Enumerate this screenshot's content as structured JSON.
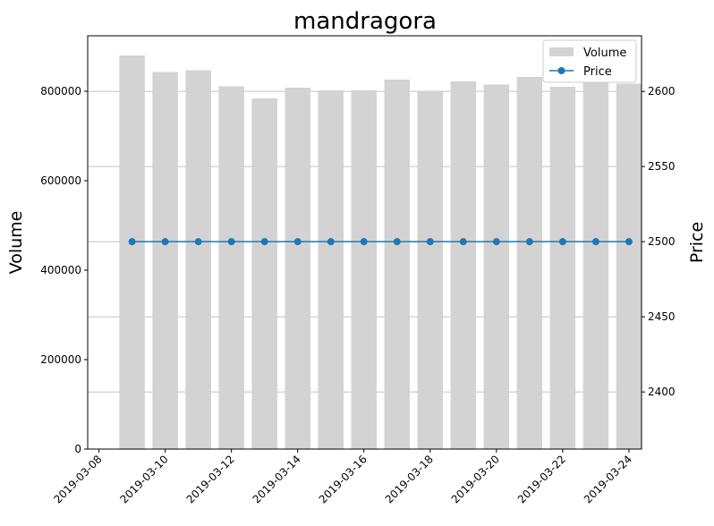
{
  "chart_data": {
    "type": "bar+line",
    "title": "mandragora",
    "x": [
      "2019-03-09",
      "2019-03-10",
      "2019-03-11",
      "2019-03-12",
      "2019-03-13",
      "2019-03-14",
      "2019-03-15",
      "2019-03-16",
      "2019-03-17",
      "2019-03-18",
      "2019-03-19",
      "2019-03-20",
      "2019-03-21",
      "2019-03-22",
      "2019-03-23",
      "2019-03-24"
    ],
    "x_ticks": [
      "2019-03-08",
      "2019-03-10",
      "2019-03-12",
      "2019-03-14",
      "2019-03-16",
      "2019-03-18",
      "2019-03-20",
      "2019-03-22",
      "2019-03-24"
    ],
    "x_range": [
      "2019-03-08",
      "2019-03-25"
    ],
    "series": [
      {
        "name": "Volume",
        "type": "bar",
        "axis": "left",
        "color": "#d3d3d3",
        "values": [
          880000,
          843000,
          847000,
          811000,
          784000,
          808000,
          802000,
          802000,
          826000,
          800000,
          822000,
          815000,
          832000,
          810000,
          820000,
          817000
        ]
      },
      {
        "name": "Price",
        "type": "line",
        "axis": "right",
        "color": "#1f77b4",
        "marker": "circle",
        "values": [
          2500,
          2500,
          2500,
          2500,
          2500,
          2500,
          2500,
          2500,
          2500,
          2500,
          2500,
          2500,
          2500,
          2500,
          2500,
          2500
        ]
      }
    ],
    "ylabel": "Volume",
    "ylim": [
      0,
      924000
    ],
    "yticks": [
      0,
      200000,
      400000,
      600000,
      800000
    ],
    "y2label": "Price",
    "y2lim": [
      2362,
      2637
    ],
    "y2ticks": [
      2400,
      2450,
      2500,
      2550,
      2600
    ],
    "grid": "horizontal, right axis",
    "legend_position": "top-right"
  }
}
